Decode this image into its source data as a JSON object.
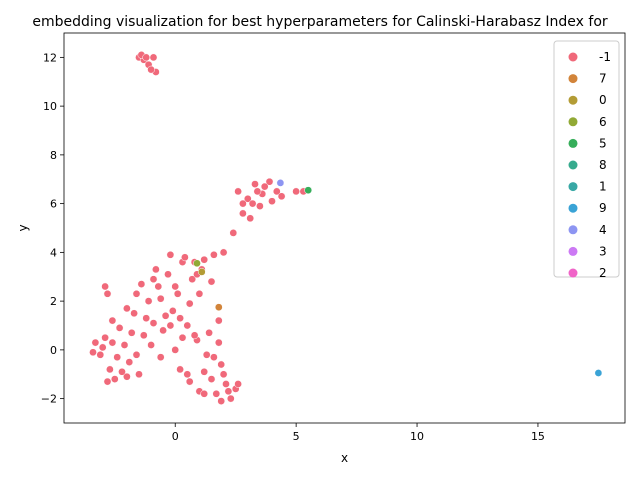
{
  "chart_data": {
    "type": "scatter",
    "title": "embedding visualization for best hyperparameters for Calinski-Harabasz Index for",
    "xlabel": "x",
    "ylabel": "y",
    "xlim": [
      -4.6,
      18.6
    ],
    "ylim": [
      -3.0,
      13.0
    ],
    "xticks": [
      0,
      5,
      10,
      15
    ],
    "yticks": [
      -2,
      0,
      2,
      4,
      6,
      8,
      10,
      12
    ],
    "grid": false,
    "legend_position": "top-right",
    "series": [
      {
        "name": "-1",
        "color": "#f0697a",
        "points": [
          [
            -3.3,
            0.3
          ],
          [
            -3.1,
            -0.2
          ],
          [
            -2.9,
            0.5
          ],
          [
            -2.7,
            -0.8
          ],
          [
            -2.5,
            -1.2
          ],
          [
            -2.3,
            0.9
          ],
          [
            -2.1,
            0.2
          ],
          [
            -1.9,
            -0.5
          ],
          [
            -1.7,
            1.5
          ],
          [
            -1.5,
            -1.0
          ],
          [
            -1.3,
            0.6
          ],
          [
            -1.1,
            2.0
          ],
          [
            -0.9,
            1.1
          ],
          [
            -0.7,
            2.6
          ],
          [
            -0.5,
            0.8
          ],
          [
            -0.3,
            3.1
          ],
          [
            -0.1,
            1.6
          ],
          [
            0.1,
            2.3
          ],
          [
            0.3,
            3.6
          ],
          [
            0.5,
            1.0
          ],
          [
            0.7,
            2.9
          ],
          [
            0.9,
            0.4
          ],
          [
            1.1,
            3.3
          ],
          [
            1.3,
            -0.2
          ],
          [
            1.5,
            -1.2
          ],
          [
            1.7,
            -1.8
          ],
          [
            1.9,
            -0.6
          ],
          [
            2.1,
            -1.4
          ],
          [
            2.3,
            -2.0
          ],
          [
            2.5,
            -1.6
          ],
          [
            -2.8,
            -1.3
          ],
          [
            -2.2,
            -0.9
          ],
          [
            -1.6,
            -0.2
          ],
          [
            -1.0,
            0.2
          ],
          [
            -0.4,
            1.4
          ],
          [
            0.2,
            -0.8
          ],
          [
            0.6,
            -1.3
          ],
          [
            1.0,
            -1.7
          ],
          [
            1.4,
            0.7
          ],
          [
            1.8,
            0.3
          ],
          [
            -2.6,
            1.2
          ],
          [
            -2.0,
            1.7
          ],
          [
            -1.4,
            2.7
          ],
          [
            -0.8,
            3.3
          ],
          [
            -0.2,
            3.9
          ],
          [
            0.4,
            3.8
          ],
          [
            0.8,
            3.6
          ],
          [
            1.2,
            3.7
          ],
          [
            1.6,
            3.9
          ],
          [
            2.0,
            4.0
          ],
          [
            2.4,
            4.8
          ],
          [
            2.8,
            5.6
          ],
          [
            3.0,
            6.2
          ],
          [
            3.3,
            6.8
          ],
          [
            3.6,
            6.4
          ],
          [
            3.9,
            6.9
          ],
          [
            4.2,
            6.5
          ],
          [
            3.5,
            5.9
          ],
          [
            3.1,
            5.4
          ],
          [
            2.8,
            6.0
          ],
          [
            4.0,
            6.1
          ],
          [
            3.7,
            6.7
          ],
          [
            3.2,
            6.0
          ],
          [
            4.4,
            6.3
          ],
          [
            5.0,
            6.5
          ],
          [
            5.3,
            6.5
          ],
          [
            2.6,
            6.5
          ],
          [
            3.4,
            6.5
          ],
          [
            -2.9,
            2.6
          ],
          [
            -2.8,
            2.3
          ],
          [
            -1.5,
            12.0
          ],
          [
            -1.3,
            11.9
          ],
          [
            -1.1,
            11.7
          ],
          [
            -0.9,
            12.0
          ],
          [
            -0.8,
            11.4
          ],
          [
            -1.0,
            11.5
          ],
          [
            -1.4,
            12.1
          ],
          [
            -1.2,
            12.0
          ],
          [
            0.0,
            0.0
          ],
          [
            -0.6,
            -0.3
          ],
          [
            0.3,
            0.5
          ],
          [
            1.2,
            -0.9
          ],
          [
            1.6,
            -0.3
          ],
          [
            2.0,
            -1.0
          ],
          [
            0.5,
            -1.0
          ],
          [
            -1.8,
            0.7
          ],
          [
            -2.4,
            -0.3
          ],
          [
            -3.4,
            -0.1
          ],
          [
            -3.0,
            0.1
          ],
          [
            -2.6,
            0.3
          ],
          [
            -2.0,
            -1.1
          ],
          [
            -1.2,
            1.3
          ],
          [
            -0.6,
            2.1
          ],
          [
            0.0,
            2.6
          ],
          [
            0.6,
            1.9
          ],
          [
            1.0,
            2.3
          ],
          [
            1.5,
            2.8
          ],
          [
            1.8,
            1.2
          ],
          [
            2.2,
            -1.7
          ],
          [
            1.9,
            -2.1
          ],
          [
            2.6,
            -1.4
          ],
          [
            1.2,
            -1.8
          ],
          [
            0.8,
            0.6
          ],
          [
            -0.2,
            1.0
          ],
          [
            0.2,
            1.3
          ],
          [
            -1.6,
            2.3
          ],
          [
            -0.9,
            2.9
          ],
          [
            0.9,
            3.1
          ]
        ]
      },
      {
        "name": "7",
        "color": "#d2843a",
        "points": [
          [
            1.8,
            1.75
          ]
        ]
      },
      {
        "name": "0",
        "color": "#b39c35",
        "points": [
          [
            1.1,
            3.2
          ]
        ]
      },
      {
        "name": "6",
        "color": "#91a935",
        "points": [
          [
            0.9,
            3.55
          ]
        ]
      },
      {
        "name": "5",
        "color": "#36ae5a",
        "points": [
          [
            5.5,
            6.55
          ]
        ]
      },
      {
        "name": "8",
        "color": "#37ab8e",
        "points": []
      },
      {
        "name": "1",
        "color": "#38a8a5",
        "points": []
      },
      {
        "name": "9",
        "color": "#3aa3d6",
        "points": [
          [
            17.5,
            -0.95
          ]
        ]
      },
      {
        "name": "4",
        "color": "#8d95f2",
        "points": [
          [
            4.35,
            6.85
          ]
        ]
      },
      {
        "name": "3",
        "color": "#cc79f4",
        "points": []
      },
      {
        "name": "2",
        "color": "#f064c8",
        "points": []
      }
    ]
  }
}
